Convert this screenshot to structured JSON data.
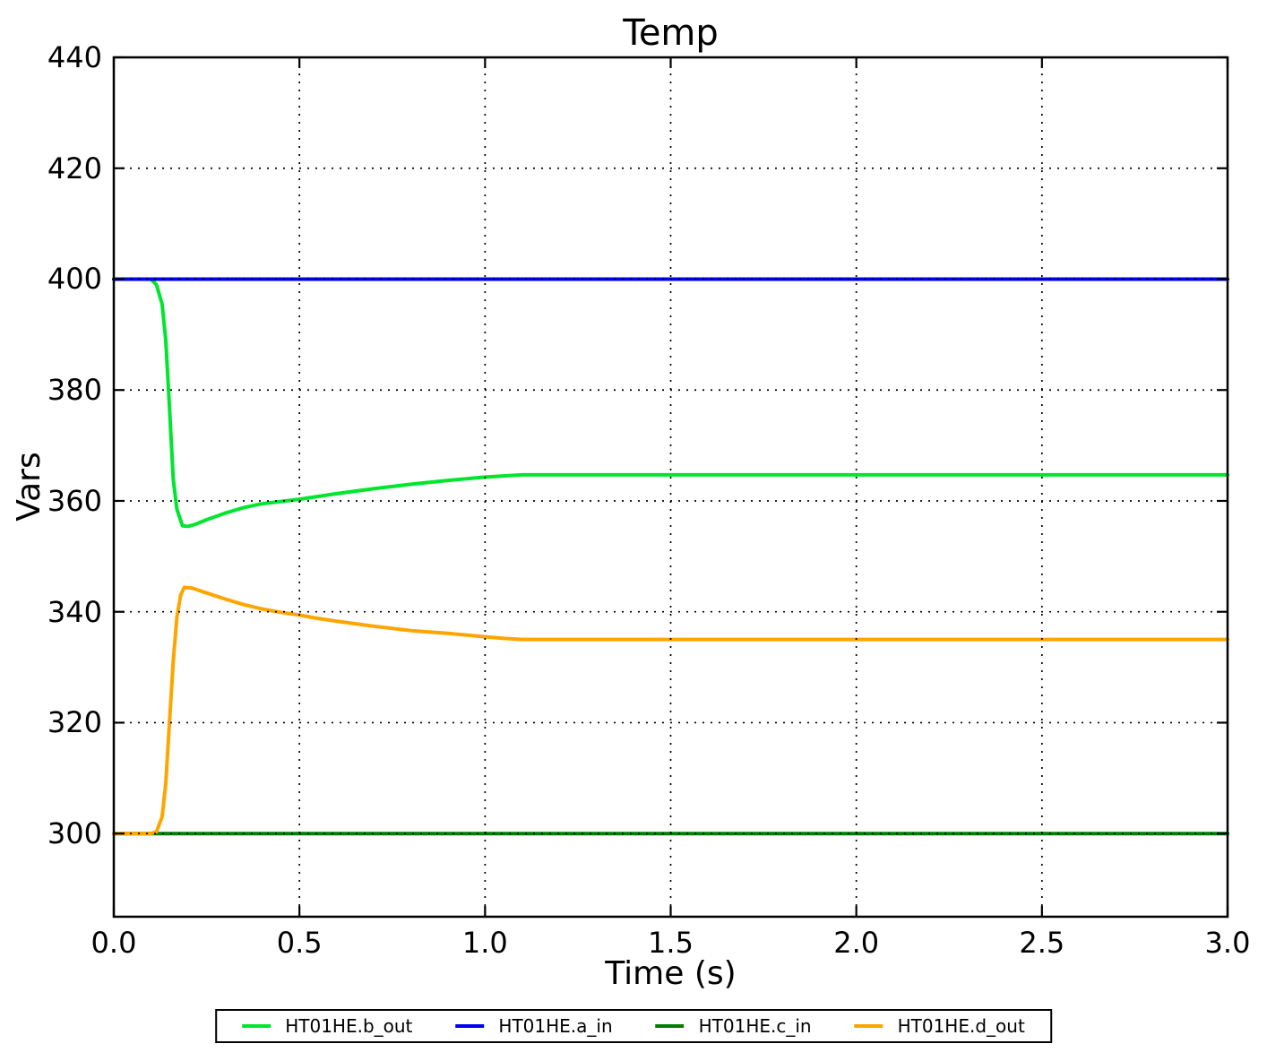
{
  "title": "Temp",
  "axes": {
    "xlabel": "Time (s)",
    "ylabel": "Vars",
    "x_tick_labels": [
      "0.0",
      "0.5",
      "1.0",
      "1.5",
      "2.0",
      "2.5",
      "3.0"
    ],
    "x_tick_values": [
      0,
      0.5,
      1.0,
      1.5,
      2.0,
      2.5,
      3.0
    ],
    "y_tick_labels": [
      "300",
      "320",
      "340",
      "360",
      "380",
      "400",
      "420",
      "440"
    ],
    "y_tick_values": [
      300,
      320,
      340,
      360,
      380,
      400,
      420,
      440
    ],
    "xlim": [
      0,
      3
    ],
    "ylim": [
      285,
      440
    ],
    "grid_style": "dotted",
    "grid_color": "#000000",
    "axis_color": "#000000"
  },
  "chart_data": {
    "type": "line",
    "title": "Temp",
    "xlabel": "Time (s)",
    "ylabel": "Vars",
    "xlim": [
      0,
      3
    ],
    "ylim": [
      285,
      440
    ],
    "grid": true,
    "legend_position": "bottom-outside",
    "series": [
      {
        "name": "HT01HE.b_out",
        "color": "#00e62e",
        "points": [
          [
            0,
            400
          ],
          [
            0.05,
            400
          ],
          [
            0.1,
            400
          ],
          [
            0.115,
            399
          ],
          [
            0.13,
            395.5
          ],
          [
            0.14,
            389
          ],
          [
            0.15,
            377
          ],
          [
            0.16,
            364
          ],
          [
            0.17,
            358.5
          ],
          [
            0.185,
            355.5
          ],
          [
            0.2,
            355.4
          ],
          [
            0.22,
            355.8
          ],
          [
            0.25,
            356.6
          ],
          [
            0.3,
            357.8
          ],
          [
            0.35,
            358.8
          ],
          [
            0.4,
            359.5
          ],
          [
            0.45,
            359.9
          ],
          [
            0.5,
            360.3
          ],
          [
            0.55,
            360.8
          ],
          [
            0.6,
            361.3
          ],
          [
            0.7,
            362.2
          ],
          [
            0.8,
            363.0
          ],
          [
            0.9,
            363.7
          ],
          [
            1.0,
            364.3
          ],
          [
            1.05,
            364.5
          ],
          [
            1.1,
            364.7
          ],
          [
            1.25,
            364.7
          ],
          [
            1.5,
            364.7
          ],
          [
            1.75,
            364.7
          ],
          [
            2.0,
            364.7
          ],
          [
            2.25,
            364.7
          ],
          [
            2.5,
            364.7
          ],
          [
            2.75,
            364.7
          ],
          [
            3.0,
            364.7
          ]
        ]
      },
      {
        "name": "HT01HE.a_in",
        "color": "#0000ee",
        "points": [
          [
            0,
            400
          ],
          [
            0.5,
            400
          ],
          [
            1.0,
            400
          ],
          [
            1.5,
            400
          ],
          [
            2.0,
            400
          ],
          [
            2.5,
            400
          ],
          [
            3.0,
            400
          ]
        ]
      },
      {
        "name": "HT01HE.c_in",
        "color": "#008000",
        "points": [
          [
            0,
            300
          ],
          [
            0.5,
            300
          ],
          [
            1.0,
            300
          ],
          [
            1.5,
            300
          ],
          [
            2.0,
            300
          ],
          [
            2.5,
            300
          ],
          [
            3.0,
            300
          ]
        ]
      },
      {
        "name": "HT01HE.d_out",
        "color": "#ffa500",
        "points": [
          [
            0,
            300
          ],
          [
            0.05,
            300
          ],
          [
            0.1,
            300
          ],
          [
            0.115,
            300.3
          ],
          [
            0.13,
            303
          ],
          [
            0.14,
            309
          ],
          [
            0.15,
            320
          ],
          [
            0.16,
            331
          ],
          [
            0.17,
            339
          ],
          [
            0.18,
            343
          ],
          [
            0.19,
            344.4
          ],
          [
            0.21,
            344.3
          ],
          [
            0.25,
            343.4
          ],
          [
            0.3,
            342.3
          ],
          [
            0.35,
            341.3
          ],
          [
            0.4,
            340.5
          ],
          [
            0.45,
            339.9
          ],
          [
            0.5,
            339.4
          ],
          [
            0.55,
            338.8
          ],
          [
            0.6,
            338.3
          ],
          [
            0.7,
            337.4
          ],
          [
            0.8,
            336.6
          ],
          [
            0.9,
            336.1
          ],
          [
            1.0,
            335.5
          ],
          [
            1.05,
            335.2
          ],
          [
            1.1,
            335
          ],
          [
            1.25,
            335
          ],
          [
            1.5,
            335
          ],
          [
            1.75,
            335
          ],
          [
            2.0,
            335
          ],
          [
            2.25,
            335
          ],
          [
            2.5,
            335
          ],
          [
            2.75,
            335
          ],
          [
            3.0,
            335
          ]
        ]
      }
    ]
  }
}
